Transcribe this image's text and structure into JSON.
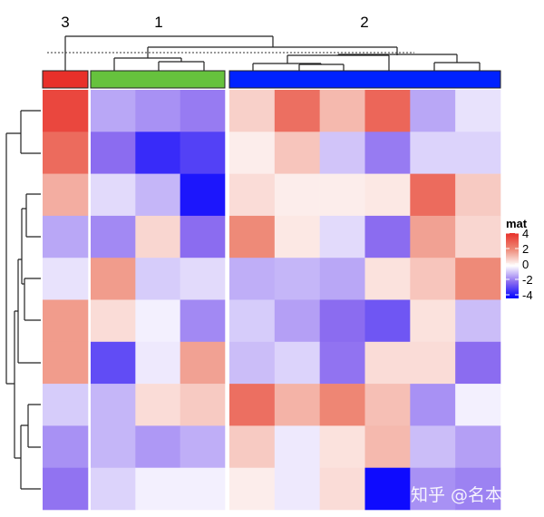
{
  "chart_data": {
    "type": "heatmap",
    "legend": {
      "title": "mat",
      "ticks": [
        4,
        2,
        0,
        -2,
        -4
      ],
      "placement": "right"
    },
    "color_scale": {
      "-4": "#0000FF",
      "-2": "#8B6CF0",
      "0": "#FFFFFF",
      "2": "#EE8A78",
      "4": "#E8302A"
    },
    "column_groups": [
      {
        "label": "3",
        "color": "#E8302A",
        "n": 1
      },
      {
        "label": "1",
        "color": "#66C23D",
        "n": 3
      },
      {
        "label": "2",
        "color": "#0022FF",
        "n": 6
      }
    ],
    "values": [
      [
        3.5,
        -1.2,
        -1.5,
        -1.8,
        0.8,
        2.6,
        1.2,
        2.8,
        -1.2,
        -0.4
      ],
      [
        2.7,
        -2.0,
        -3.2,
        -2.8,
        0.3,
        1.0,
        -0.8,
        -1.8,
        -0.6,
        -0.6
      ],
      [
        1.4,
        -0.5,
        -1.0,
        -3.6,
        0.6,
        0.3,
        0.3,
        0.4,
        2.7,
        0.9
      ],
      [
        -1.2,
        -1.6,
        0.7,
        -2.0,
        2.0,
        0.4,
        -0.5,
        -2.0,
        1.6,
        0.7
      ],
      [
        -0.4,
        1.7,
        -0.7,
        -0.5,
        -1.1,
        -1.0,
        -1.2,
        0.5,
        1.0,
        2.0
      ],
      [
        1.7,
        0.6,
        -0.2,
        -1.6,
        -0.7,
        -1.3,
        -2.0,
        -2.4,
        0.5,
        -0.9
      ],
      [
        1.7,
        -2.6,
        -0.3,
        1.6,
        -0.9,
        -0.6,
        -1.9,
        0.6,
        0.6,
        -2.0
      ],
      [
        -0.7,
        -1.0,
        0.6,
        0.9,
        2.6,
        1.3,
        2.1,
        1.1,
        -1.5,
        -0.2
      ],
      [
        -1.5,
        -1.0,
        -1.4,
        -1.1,
        0.9,
        -0.3,
        0.5,
        1.2,
        -0.9,
        -1.3
      ],
      [
        -1.9,
        -0.6,
        -0.2,
        -0.2,
        0.3,
        -0.3,
        0.6,
        -3.8,
        -1.5,
        -1.7
      ]
    ]
  },
  "watermark": "知乎 @名本无名"
}
